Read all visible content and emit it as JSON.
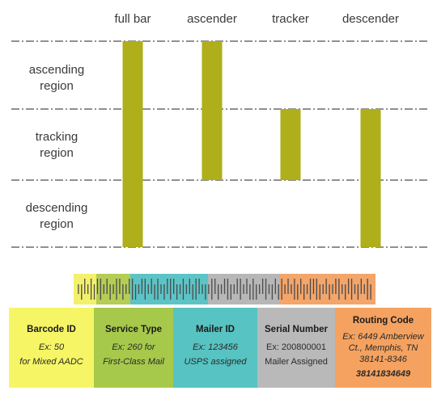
{
  "columns": [
    {
      "key": "full_bar",
      "label": "full bar",
      "span": [
        "ascending",
        "descending"
      ]
    },
    {
      "key": "ascender",
      "label": "ascender",
      "span": [
        "ascending",
        "tracking"
      ]
    },
    {
      "key": "tracker",
      "label": "tracker",
      "span": [
        "tracking",
        "tracking"
      ]
    },
    {
      "key": "descender",
      "label": "descender",
      "span": [
        "tracking",
        "descending"
      ]
    }
  ],
  "regions": [
    {
      "key": "ascending",
      "line1": "ascending",
      "line2": "region"
    },
    {
      "key": "tracking",
      "line1": "tracking",
      "line2": "region"
    },
    {
      "key": "descending",
      "line1": "descending",
      "line2": "region"
    }
  ],
  "colors": {
    "bar": "#aeaf1a",
    "dash_line": "#222222",
    "strip_yellow": "#f3f06b",
    "strip_green": "#b5cc55",
    "strip_teal": "#5cc4c6",
    "strip_gray": "#b7b7b7",
    "strip_orange": "#f3a56a",
    "box_yellow": "#f6f565",
    "box_green": "#a6c94b",
    "box_teal": "#57c3c2",
    "box_gray": "#b9b9b9",
    "box_orange": "#f5a260"
  },
  "fields": [
    {
      "key": "barcode_id",
      "title": "Barcode ID",
      "line1": "Ex: 50",
      "line2": "for Mixed AADC",
      "line3": "",
      "line4": ""
    },
    {
      "key": "service_type",
      "title": "Service Type",
      "line1": "Ex: 260 for",
      "line2": "First-Class Mail",
      "line3": "",
      "line4": ""
    },
    {
      "key": "mailer_id",
      "title": "Mailer ID",
      "line1": "Ex: 123456",
      "line2": "USPS assigned",
      "line3": "",
      "line4": ""
    },
    {
      "key": "serial_number",
      "title": "Serial Number",
      "line1": "Ex:  200800001",
      "line2": "Mailer Assigned",
      "line3": "",
      "line4": ""
    },
    {
      "key": "routing_code",
      "title": "Routing Code",
      "line1": "Ex: 6449 Amberview",
      "line2": "Ct., Memphis, TN",
      "line3": "38141-8346",
      "line4": "38141834649"
    }
  ]
}
